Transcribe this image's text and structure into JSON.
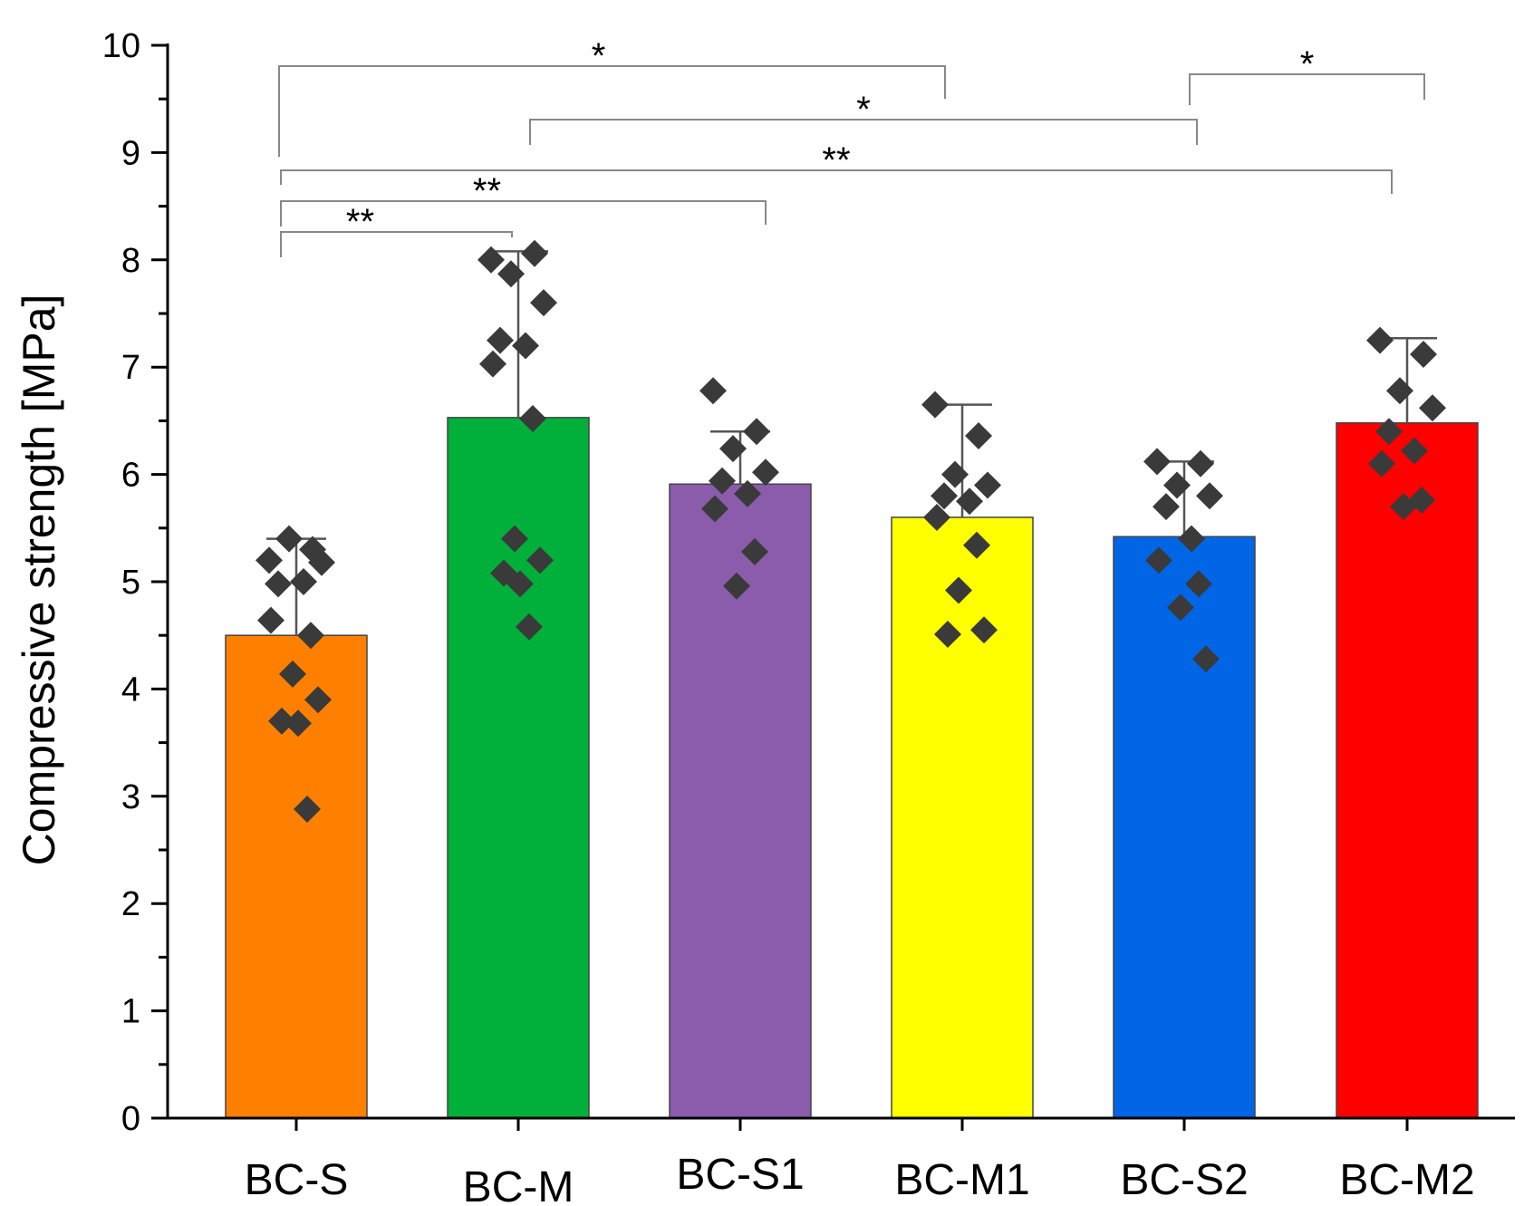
{
  "chart_data": {
    "type": "bar",
    "title": "",
    "xlabel": "",
    "ylabel": "Compressive strength [MPa]",
    "ylim": [
      0,
      10
    ],
    "yticks": [
      0,
      1,
      2,
      3,
      4,
      5,
      6,
      7,
      8,
      9,
      10
    ],
    "grid": false,
    "categories": [
      "BC-S",
      "BC-M",
      "BC-S1",
      "BC-M1",
      "BC-S2",
      "BC-M2"
    ],
    "values": [
      4.5,
      6.53,
      5.91,
      5.6,
      5.42,
      6.48
    ],
    "error_upper": [
      5.4,
      8.08,
      6.4,
      6.65,
      6.12,
      7.27
    ],
    "colors": [
      "#ff8000",
      "#00b03a",
      "#8a5cab",
      "#ffff00",
      "#0066e6",
      "#ff0000"
    ],
    "points": [
      [
        5.2,
        5.3,
        5.4,
        5.18,
        4.98,
        5.0,
        4.64,
        4.5,
        4.14,
        3.9,
        3.7,
        3.68,
        2.88
      ],
      [
        8.0,
        8.06,
        7.87,
        7.6,
        7.25,
        7.2,
        7.03,
        6.52,
        5.4,
        5.2,
        5.08,
        4.98,
        4.58
      ],
      [
        6.78,
        6.4,
        6.24,
        6.02,
        5.94,
        5.82,
        5.68,
        5.28,
        4.96
      ],
      [
        6.65,
        6.36,
        6.0,
        5.9,
        5.8,
        5.75,
        5.6,
        5.34,
        4.92,
        4.55,
        4.51
      ],
      [
        6.12,
        6.1,
        5.9,
        5.8,
        5.7,
        5.4,
        5.2,
        4.98,
        4.76,
        4.28
      ],
      [
        7.25,
        7.12,
        6.78,
        6.62,
        6.4,
        6.22,
        6.1,
        5.76,
        5.7
      ]
    ],
    "significance": [
      {
        "from": "BC-S",
        "to": "BC-M",
        "label": "**"
      },
      {
        "from": "BC-S",
        "to": "BC-S1",
        "label": "**"
      },
      {
        "from": "BC-S",
        "to": "BC-M2",
        "label": "**"
      },
      {
        "from": "BC-M",
        "to": "BC-S2",
        "label": "*"
      },
      {
        "from": "BC-S",
        "to": "BC-M1",
        "label": "*"
      },
      {
        "from": "BC-S2",
        "to": "BC-M2",
        "label": "*"
      }
    ]
  }
}
